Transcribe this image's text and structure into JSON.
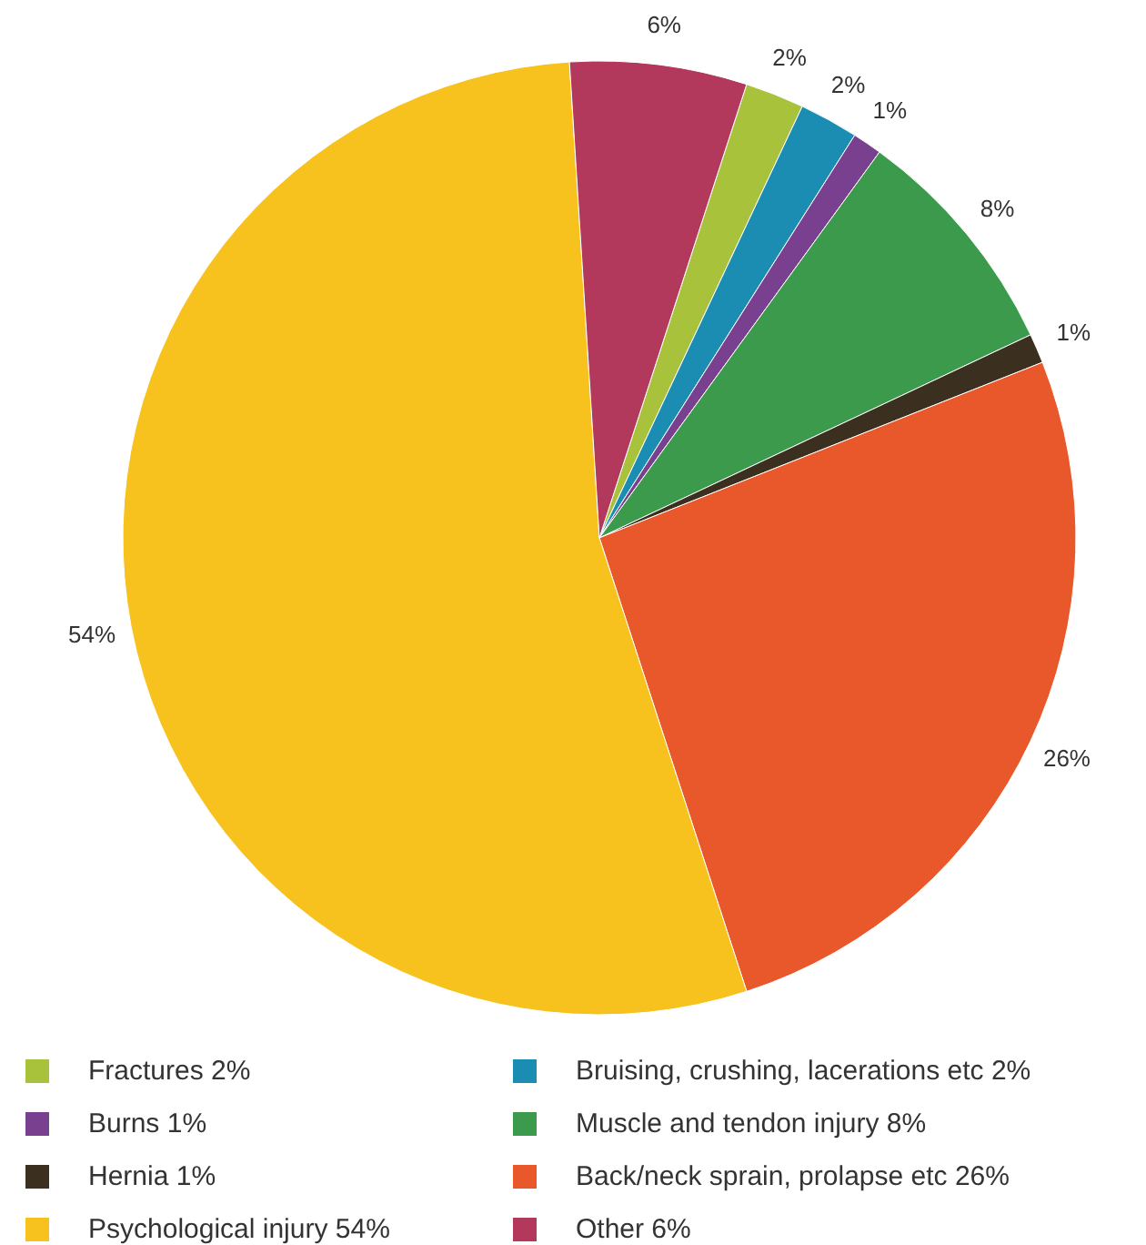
{
  "chart_data": {
    "type": "pie",
    "categories": [
      "Fractures 2%",
      "Bruising, crushing, lacerations etc 2%",
      "Burns 1%",
      "Muscle and tendon injury 8%",
      "Hernia 1%",
      "Back/neck sprain, prolapse etc 26%",
      "Psychological injury 54%",
      "Other 6%"
    ],
    "values": [
      2,
      2,
      1,
      8,
      1,
      26,
      54,
      6
    ],
    "colors": [
      "#a9c23b",
      "#1b8db3",
      "#7a4090",
      "#3c9a4c",
      "#3b3020",
      "#e9582a",
      "#f8c21e",
      "#b2395c"
    ],
    "value_labels": [
      "2%",
      "2%",
      "1%",
      "8%",
      "1%",
      "26%",
      "54%",
      "6%"
    ],
    "legend": "bottom"
  }
}
